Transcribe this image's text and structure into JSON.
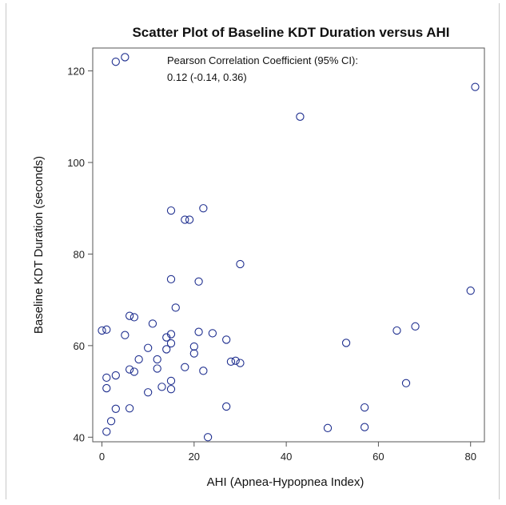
{
  "chart_data": {
    "type": "scatter",
    "title": "Scatter Plot of Baseline KDT Duration versus AHI",
    "xlabel": "AHI (Apnea-Hypopnea Index)",
    "ylabel": "Baseline KDT Duration (seconds)",
    "xlim": [
      -2,
      83
    ],
    "ylim": [
      39,
      125
    ],
    "xticks": [
      0,
      20,
      40,
      60,
      80
    ],
    "yticks": [
      40,
      60,
      80,
      100,
      120
    ],
    "annotation": {
      "line1": "Pearson Correlation Coefficient (95% CI):",
      "line2": "0.12 (-0.14, 0.36)"
    },
    "grid": false,
    "marker_color": "#1f2f8f",
    "points": [
      [
        3,
        122
      ],
      [
        5,
        123
      ],
      [
        81,
        116.5
      ],
      [
        43,
        110
      ],
      [
        15,
        89.5
      ],
      [
        22,
        90
      ],
      [
        18,
        87.5
      ],
      [
        19,
        87.5
      ],
      [
        30,
        77.8
      ],
      [
        15,
        74.5
      ],
      [
        21,
        74
      ],
      [
        80,
        72
      ],
      [
        6,
        66.5
      ],
      [
        7,
        66.2
      ],
      [
        16,
        68.3
      ],
      [
        11,
        64.8
      ],
      [
        0,
        63.3
      ],
      [
        1,
        63.5
      ],
      [
        5,
        62.3
      ],
      [
        14,
        61.8
      ],
      [
        15,
        62.5
      ],
      [
        21,
        63
      ],
      [
        24,
        62.7
      ],
      [
        27,
        61.3
      ],
      [
        15,
        60.5
      ],
      [
        10,
        59.5
      ],
      [
        14,
        59.2
      ],
      [
        20,
        59.8
      ],
      [
        20,
        58.3
      ],
      [
        53,
        60.6
      ],
      [
        64,
        63.3
      ],
      [
        68,
        64.2
      ],
      [
        8,
        57
      ],
      [
        12,
        57
      ],
      [
        28,
        56.5
      ],
      [
        29,
        56.7
      ],
      [
        30,
        56.2
      ],
      [
        18,
        55.3
      ],
      [
        6,
        54.8
      ],
      [
        7,
        54.3
      ],
      [
        12,
        55
      ],
      [
        22,
        54.5
      ],
      [
        1,
        53
      ],
      [
        3,
        53.5
      ],
      [
        15,
        52.3
      ],
      [
        66,
        51.8
      ],
      [
        1,
        50.7
      ],
      [
        10,
        49.8
      ],
      [
        13,
        51
      ],
      [
        15,
        50.5
      ],
      [
        3,
        46.2
      ],
      [
        6,
        46.3
      ],
      [
        27,
        46.7
      ],
      [
        57,
        46.5
      ],
      [
        2,
        43.5
      ],
      [
        49,
        42
      ],
      [
        57,
        42.2
      ],
      [
        1,
        41.2
      ],
      [
        23,
        40
      ]
    ]
  }
}
